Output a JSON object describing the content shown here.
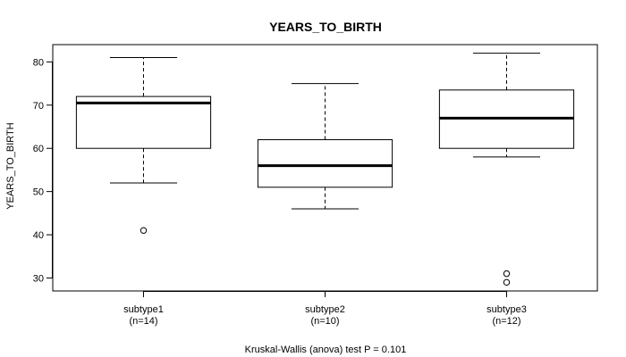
{
  "chart_data": {
    "type": "box",
    "title": "YEARS_TO_BIRTH",
    "ylabel": "YEARS_TO_BIRTH",
    "xlabel": "",
    "ylim": [
      27,
      84
    ],
    "yticks": [
      30,
      40,
      50,
      60,
      70,
      80
    ],
    "grid": false,
    "footer": "Kruskal-Wallis (anova) test P = 0.101",
    "groups": [
      {
        "name": "subtype1",
        "count_label": "(n=14)",
        "min": 52,
        "q1": 60,
        "median": 70.5,
        "q3": 72,
        "max": 81,
        "outliers": [
          41
        ]
      },
      {
        "name": "subtype2",
        "count_label": "(n=10)",
        "min": 46,
        "q1": 51,
        "median": 56,
        "q3": 62,
        "max": 75,
        "outliers": []
      },
      {
        "name": "subtype3",
        "count_label": "(n=12)",
        "min": 58,
        "q1": 60,
        "median": 67,
        "q3": 73.5,
        "max": 82,
        "outliers": [
          31,
          29
        ]
      }
    ]
  }
}
